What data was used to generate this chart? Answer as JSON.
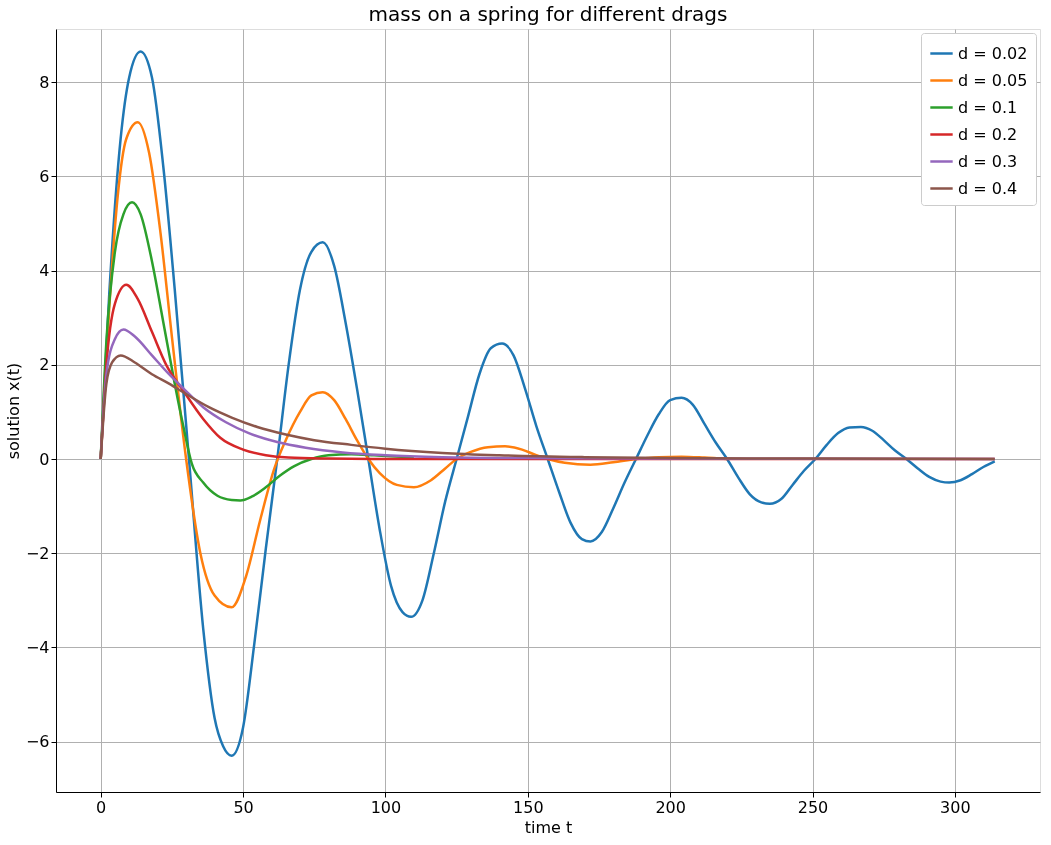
{
  "chart_data": {
    "type": "line",
    "title": "mass on a spring for different drags",
    "xlabel": "time t",
    "ylabel": "solution x(t)",
    "xlim": [
      -15.7,
      329.9
    ],
    "ylim": [
      -7.07,
      9.13
    ],
    "xticks": [
      0,
      50,
      100,
      150,
      200,
      250,
      300
    ],
    "yticks": [
      {
        "value": -6,
        "label": "−6"
      },
      {
        "value": -4,
        "label": "−4"
      },
      {
        "value": -2,
        "label": "−2"
      },
      0,
      2,
      4,
      6,
      8
    ],
    "grid": true,
    "legend": "top right",
    "line_style": "solid",
    "marker": "none",
    "series": [
      {
        "name": "d = 0.02",
        "color": "#1f77b4",
        "x": [
          0,
          3,
          7,
          10,
          14,
          18,
          22,
          26,
          31,
          36,
          40,
          43,
          46,
          50,
          54,
          58,
          62,
          66,
          70,
          74,
          78,
          82,
          86,
          90,
          94,
          98,
          102,
          106,
          109,
          113,
          117,
          121,
          125,
          129,
          133,
          137,
          141,
          145,
          149,
          153,
          157,
          161,
          165,
          169,
          172,
          176,
          180,
          184,
          188,
          192,
          196,
          200,
          204,
          208,
          212,
          216,
          220,
          224,
          228,
          232,
          235,
          239,
          243,
          247,
          251,
          255,
          259,
          263,
          267,
          271,
          275,
          279,
          283,
          287,
          291,
          295,
          298,
          302,
          306,
          310,
          314
        ],
        "values": [
          0,
          3.5,
          6.8,
          8.1,
          8.65,
          8.1,
          6.2,
          3.6,
          0,
          -3.6,
          -5.5,
          -6.1,
          -6.3,
          -5.7,
          -3.9,
          -1.9,
          0,
          2.0,
          3.6,
          4.4,
          4.6,
          4.1,
          2.9,
          1.5,
          0,
          -1.5,
          -2.7,
          -3.25,
          -3.35,
          -3.0,
          -2.0,
          -0.9,
          0,
          0.9,
          1.8,
          2.35,
          2.45,
          2.2,
          1.5,
          0.7,
          0,
          -0.7,
          -1.35,
          -1.7,
          -1.75,
          -1.55,
          -1.05,
          -0.5,
          0,
          0.5,
          0.95,
          1.25,
          1.3,
          1.15,
          0.75,
          0.35,
          0,
          -0.4,
          -0.75,
          -0.92,
          -0.95,
          -0.85,
          -0.55,
          -0.25,
          0,
          0.3,
          0.55,
          0.67,
          0.68,
          0.6,
          0.4,
          0.18,
          0,
          -0.2,
          -0.38,
          -0.48,
          -0.5,
          -0.45,
          -0.32,
          -0.17,
          -0.05
        ]
      },
      {
        "name": "d = 0.05",
        "color": "#ff7f0e",
        "x": [
          0,
          3,
          6,
          9,
          13,
          17,
          21,
          25,
          30,
          35,
          40,
          46,
          51,
          56,
          61,
          65,
          70,
          74,
          78,
          82,
          86,
          90,
          94,
          98,
          104,
          110,
          116,
          121,
          125,
          130,
          136,
          142,
          148,
          153,
          157,
          163,
          172,
          180,
          188,
          196,
          204,
          212,
          220
        ],
        "values": [
          0,
          3.2,
          5.6,
          6.8,
          7.15,
          6.5,
          4.8,
          2.6,
          0,
          -2.0,
          -2.9,
          -3.15,
          -2.5,
          -1.3,
          -0.2,
          0.4,
          1.0,
          1.35,
          1.42,
          1.25,
          0.85,
          0.4,
          0,
          -0.3,
          -0.55,
          -0.6,
          -0.45,
          -0.2,
          0,
          0.15,
          0.25,
          0.27,
          0.2,
          0.08,
          0,
          -0.08,
          -0.12,
          -0.07,
          0,
          0.04,
          0.05,
          0.03,
          0
        ]
      },
      {
        "name": "d = 0.1",
        "color": "#2ca02c",
        "x": [
          0,
          2,
          5,
          8,
          11,
          14,
          18,
          22,
          26,
          29,
          32,
          36,
          41,
          46,
          49,
          53,
          58,
          63,
          68,
          74,
          80,
          88,
          96,
          110
        ],
        "values": [
          0,
          2.5,
          4.4,
          5.2,
          5.45,
          5.2,
          4.2,
          2.9,
          1.6,
          0.7,
          -0.1,
          -0.5,
          -0.78,
          -0.87,
          -0.88,
          -0.8,
          -0.6,
          -0.35,
          -0.15,
          0.0,
          0.08,
          0.1,
          0.08,
          0.03
        ]
      },
      {
        "name": "d = 0.2",
        "color": "#d62728",
        "x": [
          0,
          2,
          5,
          9,
          13,
          18,
          23,
          29,
          36,
          42,
          50,
          58,
          66,
          80,
          100,
          314
        ],
        "values": [
          0,
          2.0,
          3.3,
          3.7,
          3.4,
          2.7,
          2.0,
          1.45,
          0.85,
          0.45,
          0.2,
          0.08,
          0.03,
          0.01,
          0,
          0
        ]
      },
      {
        "name": "d = 0.3",
        "color": "#9467bd",
        "x": [
          0,
          2,
          5,
          8,
          12,
          18,
          24,
          29,
          36,
          44,
          52,
          62,
          72,
          85,
          100,
          120,
          150,
          200,
          314
        ],
        "values": [
          0,
          1.8,
          2.55,
          2.75,
          2.6,
          2.2,
          1.8,
          1.5,
          1.1,
          0.78,
          0.55,
          0.36,
          0.24,
          0.14,
          0.08,
          0.04,
          0.02,
          0.01,
          0
        ]
      },
      {
        "name": "d = 0.4",
        "color": "#8c564b",
        "x": [
          0,
          2,
          4,
          7,
          12,
          18,
          24,
          30,
          38,
          46,
          55,
          65,
          75,
          88,
          100,
          120,
          140,
          170,
          200,
          250,
          314
        ],
        "values": [
          0,
          1.6,
          2.05,
          2.2,
          2.05,
          1.8,
          1.6,
          1.38,
          1.1,
          0.88,
          0.68,
          0.52,
          0.4,
          0.3,
          0.22,
          0.13,
          0.08,
          0.04,
          0.02,
          0.01,
          0
        ]
      }
    ]
  }
}
